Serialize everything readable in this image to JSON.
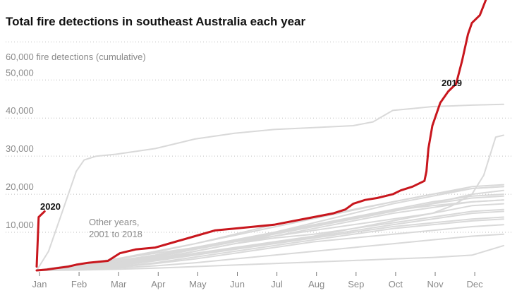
{
  "chart_data": {
    "type": "line",
    "title": "Total fire detections in southeast Australia each year",
    "y_unit_label": "60,000 fire detections (cumulative)",
    "y_ticks": [
      {
        "value": 10000,
        "label": "10,000"
      },
      {
        "value": 20000,
        "label": "20,000"
      },
      {
        "value": 30000,
        "label": "30,000"
      },
      {
        "value": 40000,
        "label": "40,000"
      },
      {
        "value": 50000,
        "label": "50,000"
      },
      {
        "value": 60000,
        "label": "60,000"
      }
    ],
    "ylim": [
      0,
      71000
    ],
    "xlim": [
      0,
      11.8
    ],
    "grid": "horizontal dotted",
    "x_categories": [
      "Jan",
      "Feb",
      "Mar",
      "Apr",
      "May",
      "Jun",
      "Jul",
      "Aug",
      "Sep",
      "Oct",
      "Nov",
      "Dec"
    ],
    "other_years_label_lines": [
      "Other years,",
      "2001 to 2018"
    ],
    "colors": {
      "highlight": "#c8161d",
      "other": "#d9d9d9",
      "grid": "#bdbdbd",
      "text": "#121212",
      "muted": "#8a8a8a"
    },
    "series": [
      {
        "name": "2019",
        "highlight": true,
        "x": [
          0,
          0.25,
          0.5,
          0.8,
          1.0,
          1.3,
          1.8,
          2.1,
          2.5,
          3.0,
          3.5,
          4.0,
          4.5,
          5.0,
          5.5,
          6.0,
          6.5,
          7.0,
          7.5,
          7.8,
          8.0,
          8.3,
          8.6,
          8.8,
          9.0,
          9.2,
          9.5,
          9.8,
          9.85,
          9.9,
          10.0,
          10.2,
          10.4,
          10.6,
          10.75,
          10.9,
          11.0,
          11.2,
          11.35
        ],
        "y": [
          0,
          200,
          600,
          1000,
          1500,
          2000,
          2500,
          4500,
          5500,
          6000,
          7500,
          9000,
          10500,
          11000,
          11500,
          12000,
          13000,
          14000,
          15000,
          16000,
          17500,
          18500,
          19000,
          19500,
          20000,
          21000,
          22000,
          23500,
          26000,
          32000,
          38000,
          44000,
          47000,
          49000,
          55000,
          62000,
          65000,
          67000,
          71000
        ]
      },
      {
        "name": "2020",
        "highlight": true,
        "x": [
          0,
          0.05,
          0.1,
          0.2
        ],
        "y": [
          1000,
          14000,
          14500,
          15500
        ]
      },
      {
        "x": [
          0,
          1,
          2,
          3,
          4,
          5,
          6,
          7,
          8,
          9,
          10,
          11,
          11.8
        ],
        "y": [
          0,
          900,
          2000,
          3000,
          5000,
          7000,
          8500,
          9500,
          11000,
          12500,
          14000,
          15500,
          16000
        ]
      },
      {
        "x": [
          0,
          1,
          2,
          3,
          4,
          5,
          6,
          7,
          8,
          9,
          10,
          11,
          11.8
        ],
        "y": [
          0,
          600,
          1500,
          3000,
          4500,
          6000,
          7500,
          9000,
          11000,
          13000,
          15000,
          17000,
          17500
        ]
      },
      {
        "x": [
          0,
          1,
          2,
          3,
          4,
          5,
          6,
          7,
          8,
          9,
          10,
          11,
          11.8
        ],
        "y": [
          0,
          1000,
          2500,
          4000,
          6000,
          8000,
          10000,
          12000,
          14000,
          16000,
          18000,
          19500,
          20000
        ]
      },
      {
        "x": [
          0,
          1,
          2,
          3,
          4,
          5,
          6,
          7,
          8,
          9,
          10,
          11,
          11.8
        ],
        "y": [
          0,
          800,
          2000,
          3500,
          5500,
          7500,
          9500,
          11500,
          13500,
          15500,
          17500,
          19000,
          19500
        ]
      },
      {
        "x": [
          0,
          1,
          2,
          3,
          4,
          5,
          6,
          7,
          8,
          9,
          10,
          11,
          11.8
        ],
        "y": [
          0,
          500,
          1200,
          2500,
          4000,
          5500,
          7000,
          8500,
          10000,
          11500,
          12500,
          13500,
          14000
        ]
      },
      {
        "x": [
          0,
          1,
          2,
          3,
          4,
          5,
          6,
          7,
          8,
          9,
          10,
          11,
          11.8
        ],
        "y": [
          0,
          400,
          1000,
          2000,
          3500,
          5000,
          6500,
          8000,
          9500,
          11000,
          12000,
          13000,
          13500
        ]
      },
      {
        "x": [
          0,
          1,
          2,
          3,
          4,
          5,
          6,
          7,
          8,
          9,
          10,
          11,
          11.8
        ],
        "y": [
          0,
          1200,
          2500,
          4000,
          6000,
          8000,
          10000,
          12500,
          15000,
          17500,
          19500,
          21500,
          22000
        ]
      },
      {
        "x": [
          0,
          1,
          2,
          3,
          4,
          5,
          6,
          7,
          8,
          9,
          10,
          11,
          11.8
        ],
        "y": [
          0,
          1500,
          3000,
          5000,
          7000,
          9500,
          12000,
          14000,
          16000,
          18000,
          20000,
          22000,
          22500
        ]
      },
      {
        "x": [
          0,
          1,
          2,
          3,
          4,
          5,
          6,
          7,
          8,
          9,
          10,
          11,
          11.8
        ],
        "y": [
          0,
          700,
          1800,
          3200,
          5000,
          7000,
          9000,
          11000,
          13000,
          15000,
          16500,
          18000,
          18500
        ]
      },
      {
        "x": [
          0,
          1,
          2,
          3,
          4,
          5,
          6,
          7,
          8,
          9,
          10,
          11,
          11.8
        ],
        "y": [
          0,
          300,
          800,
          1800,
          3000,
          4500,
          6000,
          7500,
          8500,
          9500,
          10500,
          11500,
          12000
        ]
      },
      {
        "x": [
          0,
          1,
          2,
          3,
          4,
          5,
          6,
          7,
          8,
          9,
          10,
          11,
          11.8
        ],
        "y": [
          0,
          600,
          1400,
          2800,
          4200,
          5800,
          7200,
          8800,
          10400,
          12000,
          13500,
          15000,
          15500
        ]
      },
      {
        "x": [
          0,
          1,
          2,
          3,
          4,
          5,
          6,
          7,
          8,
          9,
          10,
          11,
          11.8
        ],
        "y": [
          0,
          900,
          2200,
          3800,
          5600,
          7600,
          9600,
          11600,
          13600,
          15600,
          17600,
          20000,
          21000
        ]
      },
      {
        "x": [
          0,
          1,
          2,
          3,
          4,
          5,
          6,
          7,
          8,
          9,
          10,
          11,
          11.8
        ],
        "y": [
          0,
          200,
          600,
          1200,
          2000,
          3000,
          4000,
          5000,
          6000,
          7000,
          8000,
          9000,
          9500
        ]
      },
      {
        "x": [
          0,
          1,
          2,
          3,
          4,
          5,
          6,
          7,
          8,
          9,
          10,
          11,
          11.8
        ],
        "y": [
          0,
          100,
          300,
          600,
          1000,
          1400,
          1800,
          2200,
          2600,
          3000,
          3400,
          4000,
          6500
        ]
      },
      {
        "x": [
          0,
          1,
          2,
          3,
          4,
          5,
          6,
          7,
          8,
          9,
          10,
          11,
          11.8
        ],
        "y": [
          0,
          1000,
          2800,
          4800,
          7000,
          9200,
          11400,
          13600,
          15800,
          18000,
          20000,
          21500,
          22000
        ]
      },
      {
        "x": [
          0,
          1,
          2,
          3,
          4,
          5,
          6,
          7,
          8,
          9,
          10,
          11,
          11.8
        ],
        "y": [
          0,
          1100,
          2400,
          4000,
          5800,
          7800,
          9800,
          11800,
          13800,
          15800,
          17000,
          18000,
          18500
        ]
      },
      {
        "x": [
          0,
          0.3,
          0.6,
          0.8,
          1.0,
          1.2,
          1.5,
          2.0,
          3.0,
          4.0,
          5.0,
          6.0,
          7.0,
          8.0,
          8.5,
          9.0,
          9.5,
          10.0,
          10.5,
          11.0,
          11.8
        ],
        "y": [
          0,
          5000,
          14000,
          20000,
          26000,
          29000,
          30000,
          30500,
          32000,
          34500,
          36000,
          37000,
          37500,
          38000,
          39000,
          42000,
          42500,
          43000,
          43200,
          43400,
          43600
        ]
      },
      {
        "x": [
          0,
          1,
          2,
          3,
          4,
          5,
          6,
          7,
          8,
          9,
          10,
          10.5,
          11.0,
          11.3,
          11.6,
          11.8
        ],
        "y": [
          0,
          1500,
          3000,
          4500,
          6000,
          7500,
          9000,
          10500,
          12000,
          13500,
          15000,
          17000,
          20000,
          25000,
          35000,
          35500
        ]
      }
    ]
  }
}
